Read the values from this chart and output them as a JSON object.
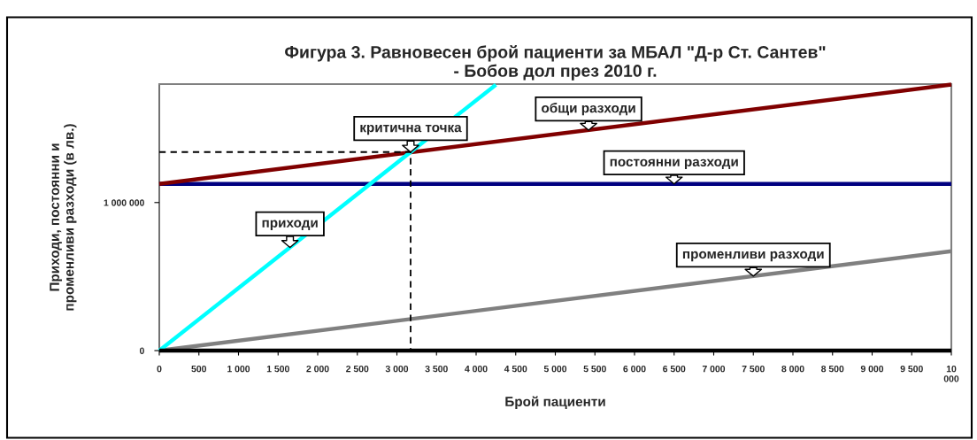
{
  "chart_data": {
    "type": "line",
    "title": "Фигура 3. Равновесен брой пациенти за МБАЛ \"Д-р Ст. Сантев\"\n- Бобов дол през 2010 г.",
    "xlabel": "Брой пациенти",
    "ylabel": "Приходи, постоянни и\nпроменливи разходи (в лв.)",
    "xlim": [
      0,
      10000
    ],
    "xticks": [
      {
        "value": 0,
        "label": "0"
      },
      {
        "value": 500,
        "label": "500"
      },
      {
        "value": 1000,
        "label": "1 000"
      },
      {
        "value": 1500,
        "label": "1 500"
      },
      {
        "value": 2000,
        "label": "2 000"
      },
      {
        "value": 2500,
        "label": "2 500"
      },
      {
        "value": 3000,
        "label": "3 000"
      },
      {
        "value": 3500,
        "label": "3 500"
      },
      {
        "value": 4000,
        "label": "4 000"
      },
      {
        "value": 4500,
        "label": "4 500"
      },
      {
        "value": 5000,
        "label": "5 000"
      },
      {
        "value": 5500,
        "label": "5 500"
      },
      {
        "value": 6000,
        "label": "6 000"
      },
      {
        "value": 6500,
        "label": "6 500"
      },
      {
        "value": 7000,
        "label": "7 000"
      },
      {
        "value": 7500,
        "label": "7 500"
      },
      {
        "value": 8000,
        "label": "8 000"
      },
      {
        "value": 8500,
        "label": "8 500"
      },
      {
        "value": 9000,
        "label": "9 000"
      },
      {
        "value": 9500,
        "label": "9 500"
      },
      {
        "value": 10000,
        "label": "10\n000"
      }
    ],
    "ylim": [
      0,
      1800000
    ],
    "yticks": [
      {
        "value": 0,
        "label": "0"
      },
      {
        "value": 1000000,
        "label": "1 000 000"
      }
    ],
    "grid": false,
    "series": [
      {
        "color": "#000000",
        "x": [
          0,
          10000
        ],
        "values": [
          0,
          0
        ]
      },
      {
        "color": "#808080",
        "x": [
          0,
          10000
        ],
        "values": [
          0,
          671000
        ]
      },
      {
        "color": "#000080",
        "x": [
          0,
          10000
        ],
        "values": [
          1126000,
          1126000
        ]
      },
      {
        "color": "#800000",
        "x": [
          0,
          10000
        ],
        "values": [
          1126000,
          1797000
        ]
      },
      {
        "color": "#00ffff",
        "x": [
          0,
          4250
        ],
        "values": [
          0,
          1796000
        ]
      },
      {
        "color": "#000000",
        "line_style": "dashed",
        "x": [
          0,
          3173,
          3173
        ],
        "values": [
          1341000,
          1341000,
          0
        ]
      }
    ],
    "annotations": [
      {
        "text": "критична точка",
        "x": 3173,
        "y": 1341000
      },
      {
        "text": "общи разходи",
        "x": 5420,
        "y": 1489000
      },
      {
        "text": "постоянни разходи",
        "x": 6500,
        "y": 1126000
      },
      {
        "text": "приходи",
        "x": 1650,
        "y": 697000
      },
      {
        "text": "променливи разходи",
        "x": 7500,
        "y": 503000
      }
    ]
  }
}
